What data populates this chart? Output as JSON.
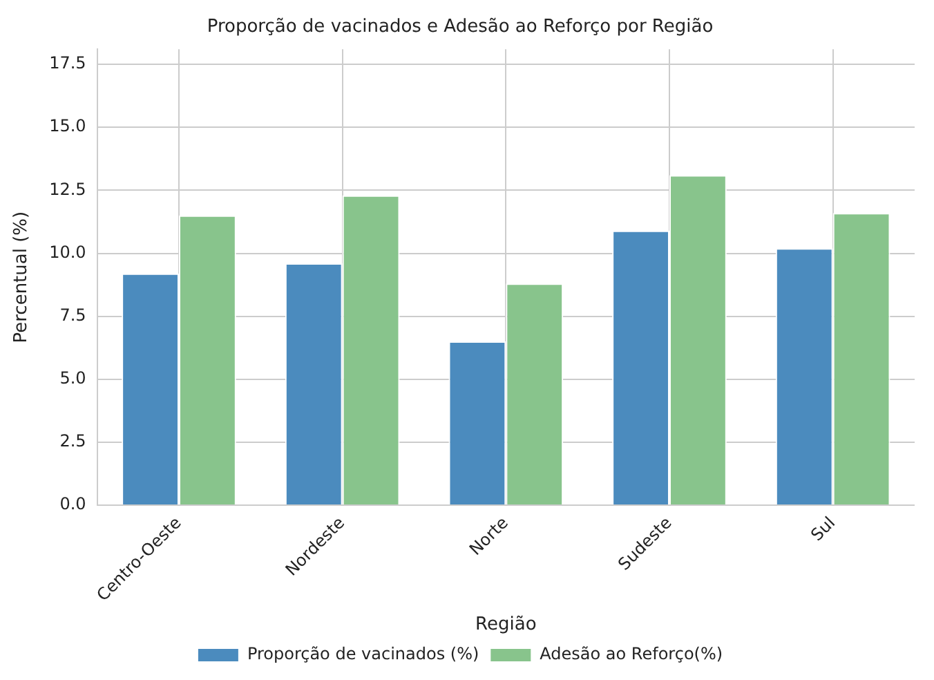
{
  "chart_data": {
    "type": "bar",
    "title": "Proporção de vacinados e Adesão ao Reforço por Região",
    "xlabel": "Região",
    "ylabel": "Percentual (%)",
    "categories": [
      "Centro-Oeste",
      "Nordeste",
      "Norte",
      "Sudeste",
      "Sul"
    ],
    "series": [
      {
        "name": "Proporção de vacinados (%)",
        "color": "#4b8bbe",
        "values": [
          9.2,
          9.6,
          6.5,
          10.9,
          10.2
        ]
      },
      {
        "name": "Adesão ao Reforço(%)",
        "color": "#88c48c",
        "values": [
          11.5,
          12.3,
          8.8,
          13.1,
          11.6
        ]
      }
    ],
    "ylim": [
      0,
      18.1
    ],
    "yticks": [
      {
        "value": 0,
        "label": "0.0"
      },
      {
        "value": 2.5,
        "label": "2.5"
      },
      {
        "value": 5,
        "label": "5.0"
      },
      {
        "value": 7.5,
        "label": "7.5"
      },
      {
        "value": 10,
        "label": "10.0"
      },
      {
        "value": 12.5,
        "label": "12.5"
      },
      {
        "value": 15,
        "label": "15.0"
      },
      {
        "value": 17.5,
        "label": "17.5"
      }
    ],
    "grid": true,
    "legend": "bottom"
  }
}
